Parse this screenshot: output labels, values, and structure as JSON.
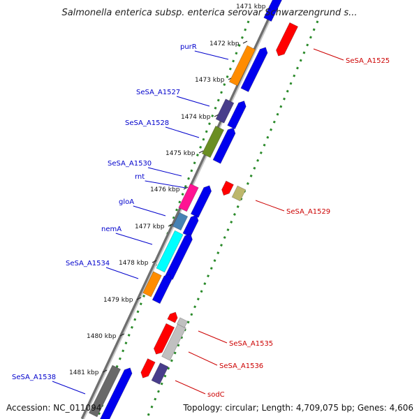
{
  "title": "Salmonella enterica subsp. enterica serovar Schwarzengrund s...",
  "footer": {
    "accession": "Accession: NC_011094",
    "summary": "Topology: circular; Length: 4,709,075 bp; Genes: 4,606"
  },
  "colors": {
    "backbone": "#8c8c8c",
    "dotted_ring": "#2a8a2a",
    "label_left": "#0000cc",
    "label_right": "#cc0000",
    "forward_strand_arrow": "#0000ee"
  },
  "axis_ticks": [
    "1471 kbp",
    "1472 kbp",
    "1473 kbp",
    "1474 kbp",
    "1475 kbp",
    "1476 kbp",
    "1477 kbp",
    "1478 kbp",
    "1479 kbp",
    "1480 kbp",
    "1481 kbp"
  ],
  "genes_left": [
    {
      "name": "purR",
      "color": "#ff8c00"
    },
    {
      "name": "SeSA_A1527",
      "color": "#483d8b"
    },
    {
      "name": "SeSA_A1528",
      "color": "#6b8e23"
    },
    {
      "name": "SeSA_A1530",
      "color": "#ff1493"
    },
    {
      "name": "rnt",
      "color": "#ff1493"
    },
    {
      "name": "gloA",
      "color": "#4682b4"
    },
    {
      "name": "nemA",
      "color": "#00ffff"
    },
    {
      "name": "SeSA_A1534",
      "color": "#ff8c00"
    },
    {
      "name": "SeSA_A1538",
      "color": "#696969"
    }
  ],
  "genes_right": [
    {
      "name": "SeSA_A1525",
      "color": "#ff0000"
    },
    {
      "name": "SeSA_A1529",
      "color": "#bdb76b"
    },
    {
      "name": "SeSA_A1535",
      "color": "#ff0000"
    },
    {
      "name": "SeSA_A1536",
      "color": "#c0c0c0"
    },
    {
      "name": "sodC",
      "color": "#483d8b"
    }
  ]
}
